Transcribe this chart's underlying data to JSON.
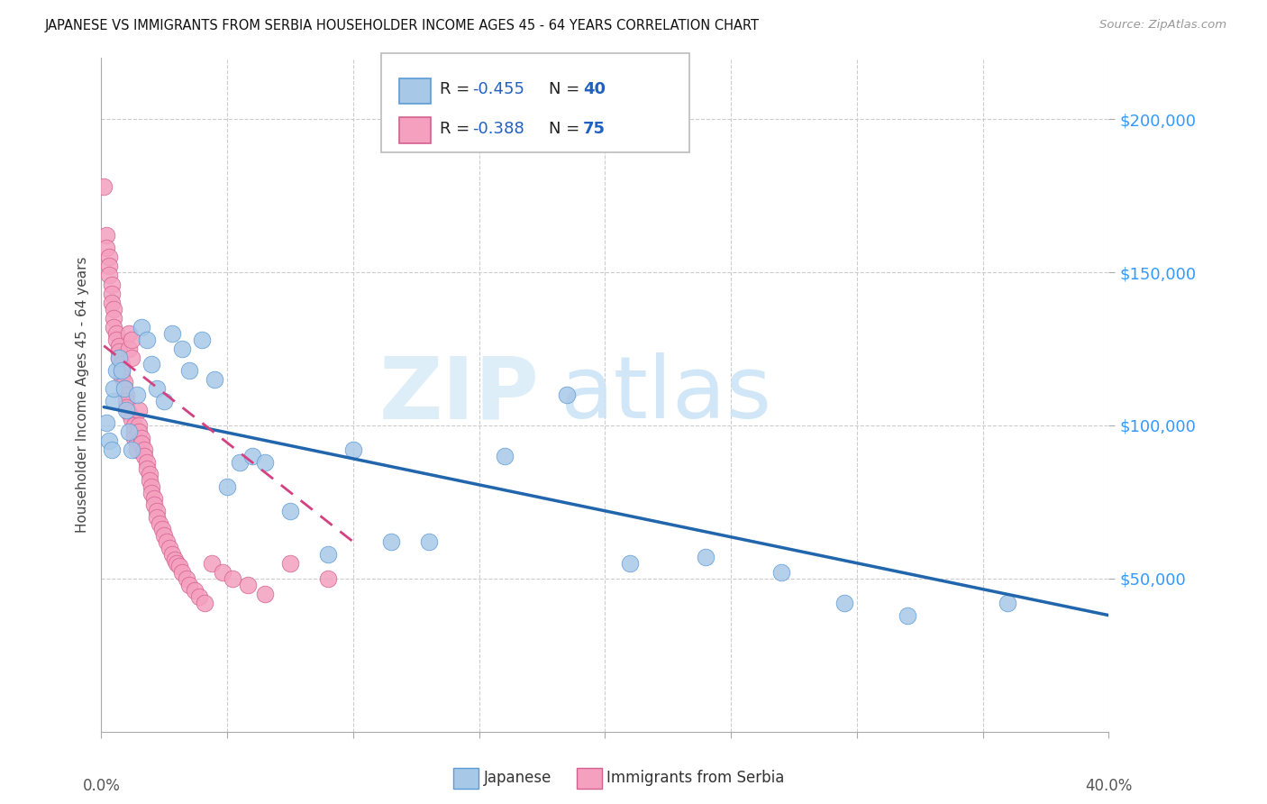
{
  "title": "JAPANESE VS IMMIGRANTS FROM SERBIA HOUSEHOLDER INCOME AGES 45 - 64 YEARS CORRELATION CHART",
  "source": "Source: ZipAtlas.com",
  "ylabel": "Householder Income Ages 45 - 64 years",
  "ytick_values": [
    50000,
    100000,
    150000,
    200000
  ],
  "xlim": [
    0.0,
    0.4
  ],
  "ylim": [
    0,
    220000
  ],
  "blue_fill": "#a8c8e8",
  "blue_edge": "#5b9bd5",
  "blue_line_color": "#2166ac",
  "pink_fill": "#f4a0be",
  "pink_edge": "#d46090",
  "pink_line_color": "#d44080",
  "legend_text_color": "#2060c0",
  "legend_n_color": "#2060c0",
  "ytick_color": "#3399ff",
  "japanese_x": [
    0.002,
    0.003,
    0.004,
    0.005,
    0.005,
    0.006,
    0.007,
    0.008,
    0.009,
    0.01,
    0.011,
    0.012,
    0.014,
    0.016,
    0.018,
    0.02,
    0.022,
    0.025,
    0.028,
    0.032,
    0.035,
    0.04,
    0.045,
    0.05,
    0.055,
    0.06,
    0.065,
    0.075,
    0.09,
    0.1,
    0.115,
    0.13,
    0.16,
    0.185,
    0.21,
    0.24,
    0.27,
    0.295,
    0.32,
    0.36
  ],
  "japanese_y": [
    101000,
    95000,
    92000,
    108000,
    112000,
    118000,
    122000,
    118000,
    112000,
    105000,
    98000,
    92000,
    110000,
    132000,
    128000,
    120000,
    112000,
    108000,
    130000,
    125000,
    118000,
    128000,
    115000,
    80000,
    88000,
    90000,
    88000,
    72000,
    58000,
    92000,
    62000,
    62000,
    90000,
    110000,
    55000,
    57000,
    52000,
    42000,
    38000,
    42000
  ],
  "serbia_x": [
    0.001,
    0.002,
    0.002,
    0.003,
    0.003,
    0.003,
    0.004,
    0.004,
    0.004,
    0.005,
    0.005,
    0.005,
    0.006,
    0.006,
    0.007,
    0.007,
    0.007,
    0.008,
    0.008,
    0.008,
    0.009,
    0.009,
    0.01,
    0.01,
    0.01,
    0.011,
    0.011,
    0.011,
    0.012,
    0.012,
    0.012,
    0.013,
    0.013,
    0.013,
    0.014,
    0.014,
    0.015,
    0.015,
    0.015,
    0.016,
    0.016,
    0.017,
    0.017,
    0.018,
    0.018,
    0.019,
    0.019,
    0.02,
    0.02,
    0.021,
    0.021,
    0.022,
    0.022,
    0.023,
    0.024,
    0.025,
    0.026,
    0.027,
    0.028,
    0.029,
    0.03,
    0.031,
    0.032,
    0.034,
    0.035,
    0.037,
    0.039,
    0.041,
    0.044,
    0.048,
    0.052,
    0.058,
    0.065,
    0.075,
    0.09
  ],
  "serbia_y": [
    178000,
    162000,
    158000,
    155000,
    152000,
    149000,
    146000,
    143000,
    140000,
    138000,
    135000,
    132000,
    130000,
    128000,
    126000,
    124000,
    122000,
    120000,
    118000,
    116000,
    114000,
    112000,
    110000,
    108000,
    106000,
    130000,
    125000,
    104000,
    128000,
    122000,
    102000,
    100000,
    98000,
    96000,
    94000,
    92000,
    105000,
    100000,
    98000,
    96000,
    94000,
    92000,
    90000,
    88000,
    86000,
    84000,
    82000,
    80000,
    78000,
    76000,
    74000,
    72000,
    70000,
    68000,
    66000,
    64000,
    62000,
    60000,
    58000,
    56000,
    55000,
    54000,
    52000,
    50000,
    48000,
    46000,
    44000,
    42000,
    55000,
    52000,
    50000,
    48000,
    45000,
    55000,
    50000
  ],
  "blue_line_x0": 0.001,
  "blue_line_x1": 0.4,
  "blue_line_y0": 106000,
  "blue_line_y1": 38000,
  "pink_line_x0": 0.001,
  "pink_line_x1": 0.1,
  "pink_line_y0": 126000,
  "pink_line_y1": 62000
}
